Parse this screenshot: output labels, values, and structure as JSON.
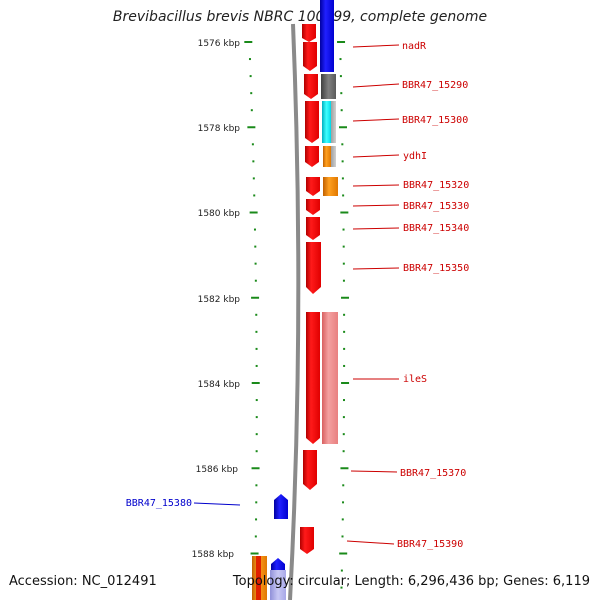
{
  "title": "Brevibacillus brevis NBRC 100599, complete genome",
  "accession": "Accession: NC_012491",
  "topology": "Topology: circular; Length: 6,296,436 bp; Genes: 6,119",
  "colors": {
    "forward_gene": "#ff0000",
    "forward_gene_light": "#f08080",
    "reverse_gene": "#0000ff",
    "reverse_gene_light": "#b8b8f0",
    "orange_gene": "#ff8c00",
    "gray_gene": "#707070",
    "cyan_gene": "#00e8f0",
    "backbone": "#8a8a8a",
    "scale_ticks": "#1a8a1a",
    "label_forward": "#cc0000",
    "label_reverse": "#0000cc"
  },
  "scale_labels": [
    "1576 kbp",
    "1578 kbp",
    "1580 kbp",
    "1582 kbp",
    "1584 kbp",
    "1586 kbp",
    "1588 kbp"
  ],
  "gene_labels": [
    {
      "text": "nadR",
      "strand": "forward"
    },
    {
      "text": "BBR47_15290",
      "strand": "forward"
    },
    {
      "text": "BBR47_15300",
      "strand": "forward"
    },
    {
      "text": "ydhI",
      "strand": "forward"
    },
    {
      "text": "BBR47_15320",
      "strand": "forward"
    },
    {
      "text": "BBR47_15330",
      "strand": "forward"
    },
    {
      "text": "BBR47_15340",
      "strand": "forward"
    },
    {
      "text": "BBR47_15350",
      "strand": "forward"
    },
    {
      "text": "ileS",
      "strand": "forward"
    },
    {
      "text": "BBR47_15370",
      "strand": "forward"
    },
    {
      "text": "BBR47_15390",
      "strand": "forward"
    },
    {
      "text": "BBR47_15380",
      "strand": "reverse"
    }
  ]
}
